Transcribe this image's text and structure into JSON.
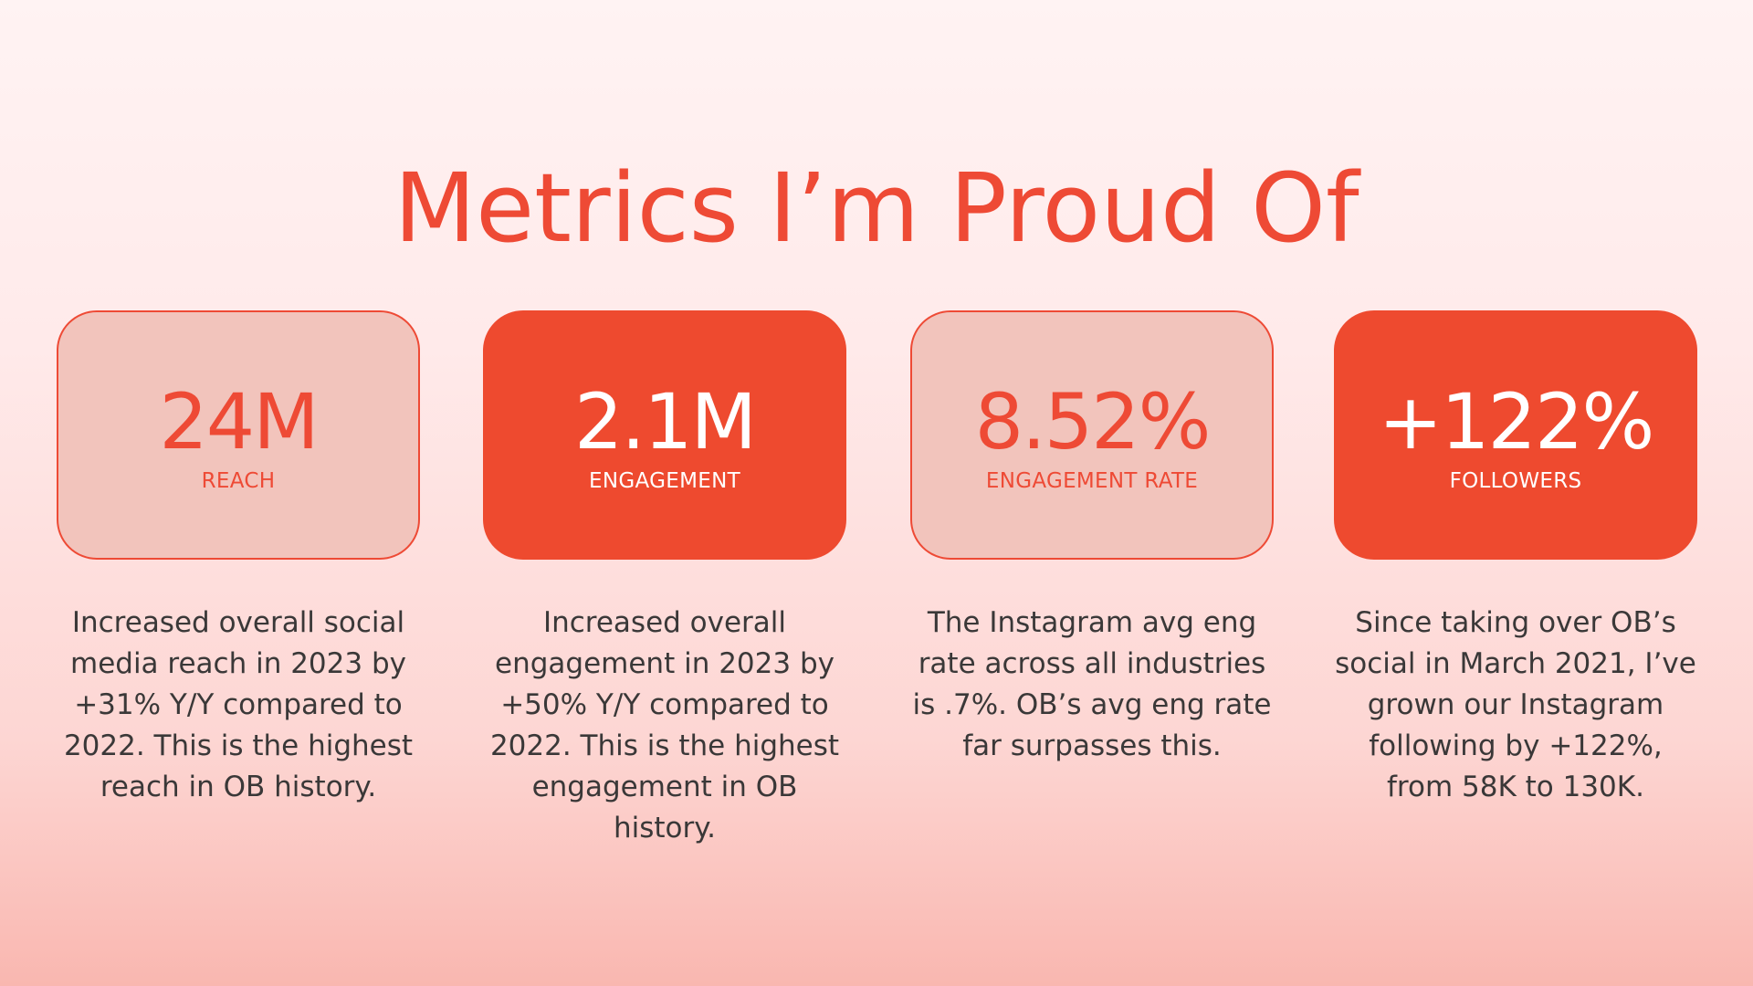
{
  "title": "Metrics I’m Proud Of",
  "colors": {
    "accent": "#ee4a35",
    "light_card": "#f2c4bc",
    "dark_card": "#ee4a2f",
    "body_text": "#3a3838"
  },
  "metrics": [
    {
      "value": "24M",
      "label": "REACH",
      "style": "light",
      "description": "Increased overall social media reach in 2023 by +31% Y/Y compared to 2022. This is the highest reach in OB history."
    },
    {
      "value": "2.1M",
      "label": "ENGAGEMENT",
      "style": "dark",
      "description": "Increased overall engagement in 2023 by +50% Y/Y compared to 2022. This is the highest engagement in OB history."
    },
    {
      "value": "8.52%",
      "label": "ENGAGEMENT RATE",
      "style": "light",
      "description": "The Instagram avg eng rate across all industries is .7%. OB’s avg eng rate far surpasses this."
    },
    {
      "value": "+122%",
      "label": "FOLLOWERS",
      "style": "dark",
      "description": "Since taking over OB’s social in March 2021, I’ve grown our Instagram following by +122%, from 58K to 130K."
    }
  ]
}
